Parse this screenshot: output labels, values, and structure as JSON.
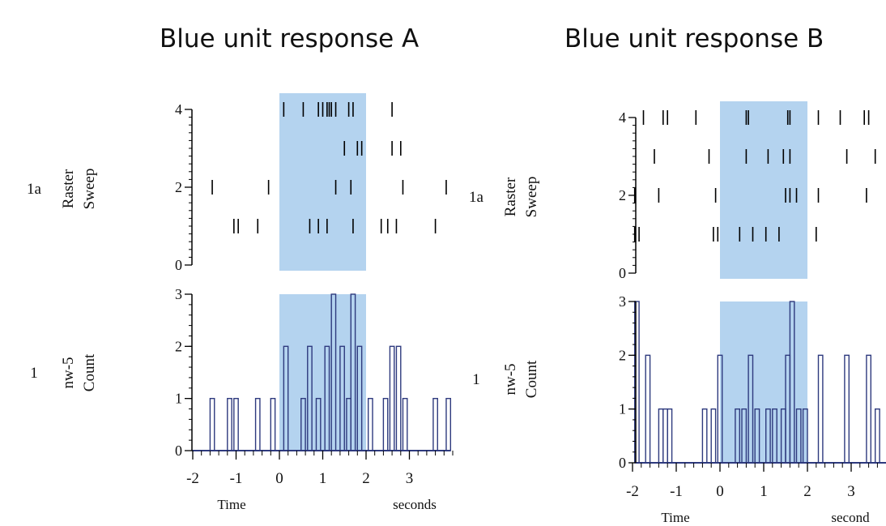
{
  "titles": {
    "a": "Blue unit response A",
    "b": "Blue unit response B"
  },
  "colors": {
    "highlight": "#b4d3ef",
    "histogram": "#2e3a7e",
    "raster_tick": "#000000",
    "axis": "#000000"
  },
  "chart_data": [
    {
      "type": "raster",
      "panel": "A",
      "channel_label": "1a",
      "ylabel": [
        "Raster",
        "Sweep"
      ],
      "ylim": [
        0,
        4
      ],
      "yticks": [
        0,
        2,
        4
      ],
      "xlim": [
        -2,
        4
      ],
      "highlight_range": [
        0,
        2
      ],
      "sweeps": [
        {
          "y": 4,
          "times": [
            0.1,
            0.55,
            0.9,
            1.0,
            1.1,
            1.15,
            1.2,
            1.3,
            1.6,
            1.7,
            2.6
          ]
        },
        {
          "y": 3,
          "times": [
            1.5,
            1.8,
            1.9,
            2.6,
            2.8
          ]
        },
        {
          "y": 2,
          "times": [
            -1.55,
            -0.25,
            1.3,
            1.65,
            2.85,
            3.85
          ]
        },
        {
          "y": 1,
          "times": [
            -1.05,
            -0.95,
            -0.5,
            0.7,
            0.9,
            1.1,
            1.7,
            2.35,
            2.5,
            2.7,
            3.6
          ]
        }
      ]
    },
    {
      "type": "histogram",
      "panel": "A",
      "channel_label": "1",
      "ylabel": [
        "nw-5",
        "Count"
      ],
      "ylim": [
        0,
        3
      ],
      "yticks": [
        0,
        1,
        2,
        3
      ],
      "xlim": [
        -2,
        4
      ],
      "xticks": [
        -2,
        -1,
        0,
        1,
        2,
        3
      ],
      "xlabel": "Time",
      "xunit": "seconds",
      "highlight_range": [
        0,
        2
      ],
      "bins": [
        {
          "x": -1.6,
          "count": 1
        },
        {
          "x": -1.2,
          "count": 1
        },
        {
          "x": -1.05,
          "count": 1
        },
        {
          "x": -0.55,
          "count": 1
        },
        {
          "x": -0.2,
          "count": 1
        },
        {
          "x": 0.1,
          "count": 2
        },
        {
          "x": 0.5,
          "count": 1
        },
        {
          "x": 0.65,
          "count": 2
        },
        {
          "x": 0.85,
          "count": 1
        },
        {
          "x": 1.05,
          "count": 2
        },
        {
          "x": 1.2,
          "count": 3
        },
        {
          "x": 1.4,
          "count": 2
        },
        {
          "x": 1.55,
          "count": 1
        },
        {
          "x": 1.65,
          "count": 3
        },
        {
          "x": 1.8,
          "count": 2
        },
        {
          "x": 2.05,
          "count": 1
        },
        {
          "x": 2.4,
          "count": 1
        },
        {
          "x": 2.55,
          "count": 2
        },
        {
          "x": 2.7,
          "count": 2
        },
        {
          "x": 2.85,
          "count": 1
        },
        {
          "x": 3.55,
          "count": 1
        },
        {
          "x": 3.85,
          "count": 1
        }
      ]
    },
    {
      "type": "raster",
      "panel": "B",
      "channel_label": "1a",
      "ylabel": [
        "Raster",
        "Sweep"
      ],
      "ylim": [
        0,
        4
      ],
      "yticks": [
        0,
        2,
        4
      ],
      "xlim": [
        -2,
        3.6
      ],
      "highlight_range": [
        0,
        2
      ],
      "sweeps": [
        {
          "y": 4,
          "times": [
            -1.75,
            -1.3,
            -1.2,
            -0.55,
            0.6,
            0.65,
            1.55,
            1.6,
            2.25,
            2.75,
            3.3,
            3.4
          ]
        },
        {
          "y": 3,
          "times": [
            -1.5,
            -0.25,
            0.6,
            1.1,
            1.45,
            1.6,
            2.9,
            3.55
          ]
        },
        {
          "y": 2,
          "times": [
            -1.95,
            -1.4,
            -0.1,
            1.5,
            1.6,
            1.75,
            2.25,
            3.35
          ]
        },
        {
          "y": 1,
          "times": [
            -2.0,
            -1.95,
            -1.85,
            -0.15,
            -0.05,
            0.45,
            0.75,
            1.05,
            1.35,
            2.2
          ]
        }
      ]
    },
    {
      "type": "histogram",
      "panel": "B",
      "channel_label": "1",
      "ylabel": [
        "nw-5",
        "Count"
      ],
      "ylim": [
        0,
        3
      ],
      "yticks": [
        0,
        1,
        2,
        3
      ],
      "xlim": [
        -2,
        3.6
      ],
      "xticks": [
        -2,
        -1,
        0,
        1,
        2,
        3
      ],
      "xlabel": "Time",
      "xunit": "second",
      "highlight_range": [
        0,
        2
      ],
      "bins": [
        {
          "x": -1.95,
          "count": 3
        },
        {
          "x": -1.7,
          "count": 2
        },
        {
          "x": -1.4,
          "count": 1
        },
        {
          "x": -1.3,
          "count": 1
        },
        {
          "x": -1.2,
          "count": 1
        },
        {
          "x": -0.4,
          "count": 1
        },
        {
          "x": -0.2,
          "count": 1
        },
        {
          "x": -0.05,
          "count": 2
        },
        {
          "x": 0.35,
          "count": 1
        },
        {
          "x": 0.5,
          "count": 1
        },
        {
          "x": 0.65,
          "count": 2
        },
        {
          "x": 0.8,
          "count": 1
        },
        {
          "x": 1.05,
          "count": 1
        },
        {
          "x": 1.2,
          "count": 1
        },
        {
          "x": 1.4,
          "count": 1
        },
        {
          "x": 1.5,
          "count": 2
        },
        {
          "x": 1.6,
          "count": 3
        },
        {
          "x": 1.75,
          "count": 1
        },
        {
          "x": 1.9,
          "count": 1
        },
        {
          "x": 2.25,
          "count": 2
        },
        {
          "x": 2.85,
          "count": 2
        },
        {
          "x": 3.35,
          "count": 2
        },
        {
          "x": 3.55,
          "count": 1
        }
      ]
    }
  ]
}
